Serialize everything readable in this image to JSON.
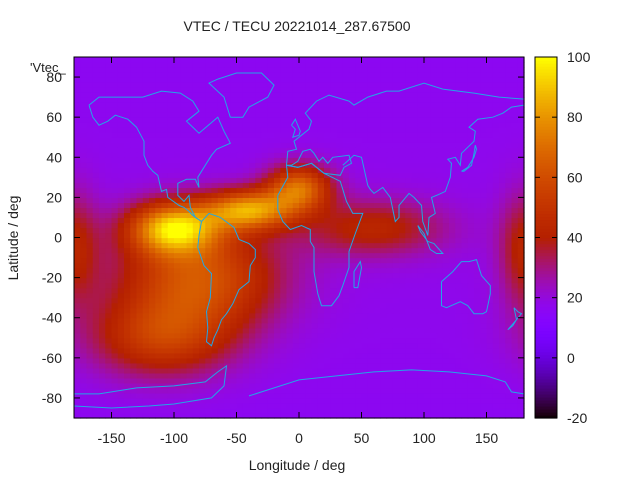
{
  "chart_data": {
    "type": "heatmap",
    "title": "VTEC / TECU 20221014_287.67500",
    "xlabel": "Longitude / deg",
    "ylabel": "Latitude / deg",
    "series_label": "'Vtec_",
    "xlim": [
      -180,
      180
    ],
    "ylim": [
      -90,
      90
    ],
    "xticks": [
      -150,
      -100,
      -50,
      0,
      50,
      100,
      150
    ],
    "yticks": [
      -80,
      -60,
      -40,
      -20,
      0,
      20,
      40,
      60,
      80
    ],
    "colorbar": {
      "min": -20,
      "max": 100,
      "ticks": [
        -20,
        0,
        20,
        40,
        60,
        80,
        100
      ]
    },
    "field_features": [
      {
        "lon": -100,
        "lat": 5,
        "vtec": 98,
        "spread_lon": 25,
        "spread_lat": 9
      },
      {
        "lon": -40,
        "lat": 14,
        "vtec": 90,
        "spread_lon": 25,
        "spread_lat": 7
      },
      {
        "lon": 0,
        "lat": 25,
        "vtec": 78,
        "spread_lon": 18,
        "spread_lat": 8
      },
      {
        "lon": -80,
        "lat": -20,
        "vtec": 70,
        "spread_lon": 45,
        "spread_lat": 18
      },
      {
        "lon": -110,
        "lat": -50,
        "vtec": 58,
        "spread_lon": 40,
        "spread_lat": 14
      },
      {
        "lon": 60,
        "lat": 5,
        "vtec": 48,
        "spread_lon": 40,
        "spread_lat": 10
      },
      {
        "lon": 180,
        "lat": -5,
        "vtec": 45,
        "spread_lon": 14,
        "spread_lat": 20
      }
    ],
    "background_vtec": 18
  }
}
